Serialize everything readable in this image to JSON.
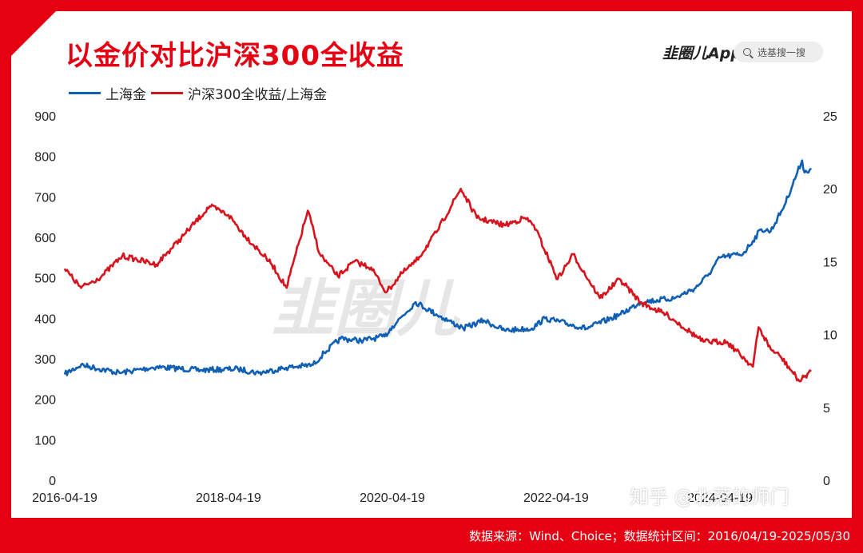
{
  "header": {
    "title": "以金价对比沪深300全收益",
    "brand": "韭圈儿App",
    "search_placeholder": "选基搜一搜"
  },
  "watermark": "韭圈儿",
  "zhihu_watermark": "知乎 @北落的师门",
  "footer": {
    "source": "数据来源：Wind、Choice；数据统计区间：2016/04/19-2025/05/30"
  },
  "colors": {
    "frame": "#e50012",
    "gold": "#0f5fb4",
    "ratio": "#d7141e"
  },
  "chart_data": {
    "type": "line",
    "x_labels": [
      "2016-04-19",
      "2018-04-19",
      "2020-04-19",
      "2022-04-19",
      "2024-04-19"
    ],
    "x_range": [
      "2016-04-19",
      "2025-05-30"
    ],
    "y_left": {
      "label": "",
      "ylim": [
        0,
        900
      ],
      "ticks": [
        0,
        100,
        200,
        300,
        400,
        500,
        600,
        700,
        800,
        900
      ]
    },
    "y_right": {
      "label": "",
      "ylim": [
        0,
        25
      ],
      "ticks": [
        0,
        5,
        10,
        15,
        20,
        25
      ]
    },
    "legend_position": "top-left",
    "grid": false,
    "series": [
      {
        "name": "上海金",
        "axis": "left",
        "color": "#0f5fb4",
        "points": [
          [
            "2016-04-19",
            262
          ],
          [
            "2016-07-01",
            285
          ],
          [
            "2016-12-20",
            265
          ],
          [
            "2017-06-01",
            280
          ],
          [
            "2017-12-15",
            272
          ],
          [
            "2018-06-01",
            275
          ],
          [
            "2018-09-01",
            265
          ],
          [
            "2019-01-01",
            278
          ],
          [
            "2019-05-01",
            285
          ],
          [
            "2019-06-20",
            315
          ],
          [
            "2019-09-01",
            350
          ],
          [
            "2019-12-01",
            345
          ],
          [
            "2020-03-15",
            355
          ],
          [
            "2020-04-19",
            380
          ],
          [
            "2020-08-01",
            440
          ],
          [
            "2020-11-01",
            410
          ],
          [
            "2021-03-01",
            375
          ],
          [
            "2021-06-01",
            395
          ],
          [
            "2021-09-01",
            370
          ],
          [
            "2022-01-01",
            375
          ],
          [
            "2022-03-01",
            400
          ],
          [
            "2022-09-01",
            375
          ],
          [
            "2023-02-01",
            410
          ],
          [
            "2023-05-01",
            440
          ],
          [
            "2023-10-01",
            450
          ],
          [
            "2024-01-01",
            475
          ],
          [
            "2024-03-01",
            510
          ],
          [
            "2024-04-19",
            550
          ],
          [
            "2024-08-01",
            560
          ],
          [
            "2024-10-20",
            620
          ],
          [
            "2024-12-01",
            615
          ],
          [
            "2025-02-01",
            680
          ],
          [
            "2025-04-20",
            790
          ],
          [
            "2025-05-01",
            760
          ],
          [
            "2025-05-30",
            770
          ]
        ]
      },
      {
        "name": "沪深300全收益/上海金",
        "axis": "right",
        "color": "#d7141e",
        "points": [
          [
            "2016-04-19",
            14.5
          ],
          [
            "2016-07-01",
            13.2
          ],
          [
            "2016-10-01",
            14.0
          ],
          [
            "2017-01-01",
            15.4
          ],
          [
            "2017-06-01",
            14.8
          ],
          [
            "2017-10-01",
            16.8
          ],
          [
            "2018-01-25",
            18.8
          ],
          [
            "2018-04-19",
            18.2
          ],
          [
            "2018-07-01",
            16.8
          ],
          [
            "2018-10-30",
            14.8
          ],
          [
            "2019-01-03",
            13.2
          ],
          [
            "2019-04-08",
            18.5
          ],
          [
            "2019-06-01",
            15.5
          ],
          [
            "2019-08-20",
            14.0
          ],
          [
            "2019-11-01",
            15.0
          ],
          [
            "2020-01-15",
            14.6
          ],
          [
            "2020-03-23",
            12.9
          ],
          [
            "2020-06-01",
            14.2
          ],
          [
            "2020-08-01",
            15.0
          ],
          [
            "2020-11-01",
            17.0
          ],
          [
            "2021-02-18",
            20.0
          ],
          [
            "2021-05-01",
            18.0
          ],
          [
            "2021-09-01",
            17.5
          ],
          [
            "2021-12-01",
            18.0
          ],
          [
            "2022-01-10",
            17.5
          ],
          [
            "2022-04-26",
            13.8
          ],
          [
            "2022-07-04",
            15.5
          ],
          [
            "2022-10-31",
            12.5
          ],
          [
            "2023-01-28",
            13.8
          ],
          [
            "2023-05-01",
            12.2
          ],
          [
            "2023-09-01",
            11.3
          ],
          [
            "2024-02-05",
            9.5
          ],
          [
            "2024-05-20",
            9.5
          ],
          [
            "2024-09-13",
            7.8
          ],
          [
            "2024-10-08",
            10.5
          ],
          [
            "2024-12-01",
            9.0
          ],
          [
            "2025-01-13",
            8.5
          ],
          [
            "2025-04-08",
            6.8
          ],
          [
            "2025-05-30",
            7.5
          ]
        ]
      }
    ]
  }
}
